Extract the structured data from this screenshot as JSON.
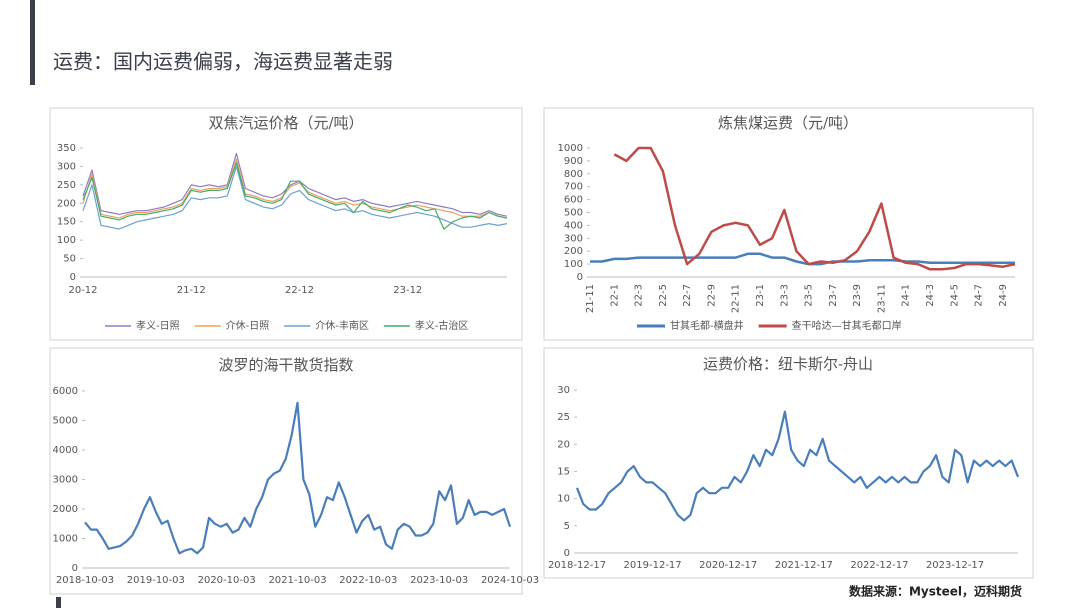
{
  "title": "运费：国内运费偏弱，海运费显著走弱",
  "source": "数据来源：Mysteel，迈科期货",
  "chart_data": [
    {
      "type": "line",
      "title": "双焦汽运价格（元/吨）",
      "categories": [
        "20-12",
        null,
        null,
        null,
        null,
        null,
        null,
        null,
        null,
        null,
        null,
        null,
        "21-12",
        null,
        null,
        null,
        null,
        null,
        null,
        null,
        null,
        null,
        null,
        null,
        "22-12",
        null,
        null,
        null,
        null,
        null,
        null,
        null,
        null,
        null,
        null,
        null,
        "23-12",
        null,
        null,
        null,
        null,
        null,
        null,
        null,
        null,
        null,
        null,
        null
      ],
      "ylim": [
        0,
        350
      ],
      "yticks": [
        0,
        50,
        100,
        150,
        200,
        250,
        300,
        350
      ],
      "series": [
        {
          "name": "孝义-日照",
          "color": "#8e7cc3",
          "values": [
            220,
            290,
            180,
            175,
            170,
            175,
            180,
            180,
            185,
            190,
            200,
            210,
            250,
            245,
            250,
            245,
            250,
            335,
            240,
            230,
            220,
            215,
            225,
            250,
            260,
            240,
            230,
            220,
            210,
            215,
            205,
            210,
            200,
            195,
            190,
            195,
            200,
            205,
            200,
            195,
            190,
            185,
            175,
            175,
            170,
            180,
            170,
            165
          ]
        },
        {
          "name": "介休-日照",
          "color": "#f0a05a",
          "values": [
            200,
            280,
            170,
            165,
            160,
            170,
            175,
            175,
            180,
            185,
            190,
            200,
            240,
            235,
            240,
            240,
            245,
            320,
            225,
            220,
            210,
            205,
            215,
            245,
            255,
            230,
            220,
            210,
            200,
            205,
            195,
            200,
            190,
            185,
            180,
            185,
            190,
            195,
            190,
            185,
            180,
            175,
            165,
            165,
            165,
            175,
            165,
            160
          ]
        },
        {
          "name": "介休-丰南区",
          "color": "#6f9fd0",
          "values": [
            180,
            250,
            140,
            135,
            130,
            140,
            150,
            155,
            160,
            165,
            170,
            180,
            215,
            210,
            215,
            215,
            220,
            300,
            210,
            200,
            190,
            185,
            195,
            225,
            235,
            210,
            200,
            190,
            180,
            185,
            175,
            180,
            170,
            165,
            160,
            165,
            170,
            175,
            170,
            165,
            155,
            145,
            135,
            135,
            140,
            145,
            140,
            145
          ]
        },
        {
          "name": "孝义-古治区",
          "color": "#3fae6a",
          "values": [
            210,
            270,
            165,
            160,
            155,
            165,
            170,
            170,
            175,
            180,
            185,
            195,
            235,
            230,
            235,
            235,
            240,
            310,
            220,
            215,
            205,
            200,
            210,
            260,
            260,
            225,
            215,
            205,
            195,
            200,
            175,
            205,
            185,
            180,
            175,
            185,
            195,
            190,
            180,
            185,
            130,
            150,
            160,
            165,
            160,
            175,
            165,
            160
          ]
        }
      ]
    },
    {
      "type": "line",
      "title": "炼焦煤运费（元/吨）",
      "categories": [
        "21-11",
        null,
        "22-1",
        null,
        "22-3",
        null,
        "22-5",
        null,
        "22-7",
        null,
        "22-9",
        null,
        "22-11",
        null,
        "23-1",
        null,
        "23-3",
        null,
        "23-5",
        null,
        "23-7",
        null,
        "23-9",
        null,
        "23-11",
        null,
        "24-1",
        null,
        "24-3",
        null,
        "24-5",
        null,
        "24-7",
        null,
        "24-9",
        null
      ],
      "ylim": [
        0,
        1000
      ],
      "yticks": [
        0,
        100,
        200,
        300,
        400,
        500,
        600,
        700,
        800,
        900,
        1000
      ],
      "series": [
        {
          "name": "甘其毛都-横盘井",
          "color": "#4a7ebb",
          "values": [
            120,
            120,
            140,
            140,
            150,
            150,
            150,
            150,
            150,
            150,
            150,
            150,
            150,
            180,
            180,
            150,
            150,
            120,
            100,
            100,
            120,
            120,
            120,
            130,
            130,
            130,
            120,
            120,
            110,
            110,
            110,
            110,
            110,
            110,
            110,
            110
          ]
        },
        {
          "name": "查干哈达—甘其毛都口岸",
          "color": "#be4b48",
          "values": [
            null,
            null,
            950,
            900,
            1000,
            1000,
            820,
            400,
            100,
            180,
            350,
            400,
            420,
            400,
            250,
            300,
            520,
            200,
            100,
            120,
            110,
            130,
            200,
            350,
            570,
            150,
            110,
            100,
            60,
            60,
            70,
            100,
            100,
            90,
            80,
            100
          ]
        }
      ]
    },
    {
      "type": "line",
      "title": "波罗的海干散货指数",
      "categories": [
        "2018-10-03",
        null,
        null,
        null,
        null,
        null,
        null,
        null,
        null,
        null,
        null,
        null,
        "2019-10-03",
        null,
        null,
        null,
        null,
        null,
        null,
        null,
        null,
        null,
        null,
        null,
        "2020-10-03",
        null,
        null,
        null,
        null,
        null,
        null,
        null,
        null,
        null,
        null,
        null,
        "2021-10-03",
        null,
        null,
        null,
        null,
        null,
        null,
        null,
        null,
        null,
        null,
        null,
        "2022-10-03",
        null,
        null,
        null,
        null,
        null,
        null,
        null,
        null,
        null,
        null,
        null,
        "2023-10-03",
        null,
        null,
        null,
        null,
        null,
        null,
        null,
        null,
        null,
        null,
        null,
        "2024-10-03"
      ],
      "ylim": [
        0,
        6000
      ],
      "yticks": [
        0,
        1000,
        2000,
        3000,
        4000,
        5000,
        6000
      ],
      "color": "#4a7ebb",
      "values": [
        1550,
        1300,
        1300,
        1000,
        650,
        700,
        750,
        900,
        1100,
        1500,
        2000,
        2400,
        1900,
        1500,
        1600,
        1000,
        500,
        600,
        650,
        500,
        700,
        1700,
        1500,
        1400,
        1500,
        1200,
        1300,
        1700,
        1400,
        2000,
        2400,
        3000,
        3200,
        3300,
        3700,
        4500,
        5600,
        3000,
        2500,
        1400,
        1800,
        2400,
        2300,
        2900,
        2400,
        1800,
        1200,
        1600,
        1800,
        1300,
        1400,
        800,
        650,
        1300,
        1500,
        1400,
        1100,
        1100,
        1200,
        1500,
        2600,
        2300,
        2800,
        1500,
        1700,
        2300,
        1800,
        1900,
        1900,
        1800,
        1900,
        2000,
        1400
      ]
    },
    {
      "type": "line",
      "title": "运费价格：纽卡斯尔-舟山",
      "categories": [
        "2018-12-17",
        null,
        null,
        null,
        null,
        null,
        null,
        null,
        null,
        null,
        null,
        null,
        "2019-12-17",
        null,
        null,
        null,
        null,
        null,
        null,
        null,
        null,
        null,
        null,
        null,
        "2020-12-17",
        null,
        null,
        null,
        null,
        null,
        null,
        null,
        null,
        null,
        null,
        null,
        "2021-12-17",
        null,
        null,
        null,
        null,
        null,
        null,
        null,
        null,
        null,
        null,
        null,
        "2022-12-17",
        null,
        null,
        null,
        null,
        null,
        null,
        null,
        null,
        null,
        null,
        null,
        "2023-12-17",
        null,
        null,
        null,
        null,
        null,
        null,
        null,
        null,
        null,
        null
      ],
      "ylim": [
        0,
        30
      ],
      "yticks": [
        0,
        5,
        10,
        15,
        20,
        25,
        30
      ],
      "color": "#4a7ebb",
      "values": [
        12,
        9,
        8,
        8,
        9,
        11,
        12,
        13,
        15,
        16,
        14,
        13,
        13,
        12,
        11,
        9,
        7,
        6,
        7,
        11,
        12,
        11,
        11,
        12,
        12,
        14,
        13,
        15,
        18,
        16,
        19,
        18,
        21,
        26,
        19,
        17,
        16,
        19,
        18,
        21,
        17,
        16,
        15,
        14,
        13,
        14,
        12,
        13,
        14,
        13,
        14,
        13,
        14,
        13,
        13,
        15,
        16,
        18,
        14,
        13,
        19,
        18,
        13,
        17,
        16,
        17,
        16,
        17,
        16,
        17,
        14
      ]
    }
  ]
}
